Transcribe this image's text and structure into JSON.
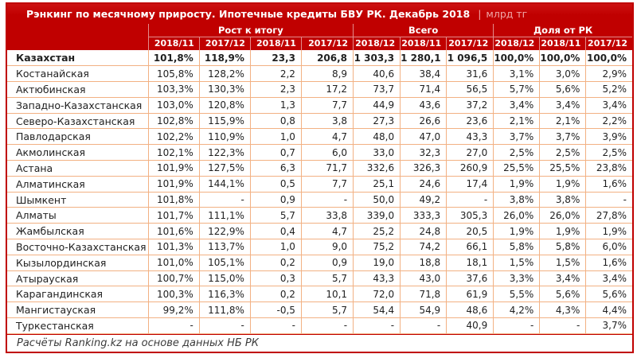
{
  "chart_data": {
    "type": "table",
    "title": "Рэнкинг по месячному приросту. Ипотечные кредиты БВУ РК. Декабрь 2018",
    "unit_divider": "|",
    "unit": "млрд тг",
    "column_groups": [
      {
        "label": "Рост к итогу",
        "cols": [
          "2018/11",
          "2017/12",
          "2018/11",
          "2017/12"
        ]
      },
      {
        "label": "Всего",
        "cols": [
          "2018/12",
          "2018/11",
          "2017/12"
        ]
      },
      {
        "label": "Доля от РК",
        "cols": [
          "2018/12",
          "2018/11",
          "2017/12"
        ]
      }
    ],
    "rows": [
      {
        "name": "Казахстан",
        "bold": true,
        "values": [
          "101,8%",
          "118,9%",
          "23,3",
          "206,8",
          "1 303,3",
          "1 280,1",
          "1 096,5",
          "100,0%",
          "100,0%",
          "100,0%"
        ]
      },
      {
        "name": "Костанайская",
        "values": [
          "105,8%",
          "128,2%",
          "2,2",
          "8,9",
          "40,6",
          "38,4",
          "31,6",
          "3,1%",
          "3,0%",
          "2,9%"
        ]
      },
      {
        "name": "Актюбинская",
        "values": [
          "103,3%",
          "130,3%",
          "2,3",
          "17,2",
          "73,7",
          "71,4",
          "56,5",
          "5,7%",
          "5,6%",
          "5,2%"
        ]
      },
      {
        "name": "Западно-Казахстанская",
        "values": [
          "103,0%",
          "120,8%",
          "1,3",
          "7,7",
          "44,9",
          "43,6",
          "37,2",
          "3,4%",
          "3,4%",
          "3,4%"
        ]
      },
      {
        "name": "Северо-Казахстанская",
        "values": [
          "102,8%",
          "115,9%",
          "0,8",
          "3,8",
          "27,3",
          "26,6",
          "23,6",
          "2,1%",
          "2,1%",
          "2,2%"
        ]
      },
      {
        "name": "Павлодарская",
        "values": [
          "102,2%",
          "110,9%",
          "1,0",
          "4,7",
          "48,0",
          "47,0",
          "43,3",
          "3,7%",
          "3,7%",
          "3,9%"
        ]
      },
      {
        "name": "Акмолинская",
        "values": [
          "102,1%",
          "122,3%",
          "0,7",
          "6,0",
          "33,0",
          "32,3",
          "27,0",
          "2,5%",
          "2,5%",
          "2,5%"
        ]
      },
      {
        "name": "Астана",
        "values": [
          "101,9%",
          "127,5%",
          "6,3",
          "71,7",
          "332,6",
          "326,3",
          "260,9",
          "25,5%",
          "25,5%",
          "23,8%"
        ]
      },
      {
        "name": "Алматинская",
        "values": [
          "101,9%",
          "144,1%",
          "0,5",
          "7,7",
          "25,1",
          "24,6",
          "17,4",
          "1,9%",
          "1,9%",
          "1,6%"
        ]
      },
      {
        "name": "Шымкент",
        "values": [
          "101,8%",
          "-",
          "0,9",
          "-",
          "50,0",
          "49,2",
          "-",
          "3,8%",
          "3,8%",
          "-"
        ]
      },
      {
        "name": "Алматы",
        "values": [
          "101,7%",
          "111,1%",
          "5,7",
          "33,8",
          "339,0",
          "333,3",
          "305,3",
          "26,0%",
          "26,0%",
          "27,8%"
        ]
      },
      {
        "name": "Жамбылская",
        "values": [
          "101,6%",
          "122,9%",
          "0,4",
          "4,7",
          "25,2",
          "24,8",
          "20,5",
          "1,9%",
          "1,9%",
          "1,9%"
        ]
      },
      {
        "name": "Восточно-Казахстанская",
        "values": [
          "101,3%",
          "113,7%",
          "1,0",
          "9,0",
          "75,2",
          "74,2",
          "66,1",
          "5,8%",
          "5,8%",
          "6,0%"
        ]
      },
      {
        "name": "Кызылординская",
        "values": [
          "101,0%",
          "105,1%",
          "0,2",
          "0,9",
          "19,0",
          "18,8",
          "18,1",
          "1,5%",
          "1,5%",
          "1,6%"
        ]
      },
      {
        "name": "Атырауская",
        "values": [
          "100,7%",
          "115,0%",
          "0,3",
          "5,7",
          "43,3",
          "43,0",
          "37,6",
          "3,3%",
          "3,4%",
          "3,4%"
        ]
      },
      {
        "name": "Карагандинская",
        "values": [
          "100,3%",
          "116,3%",
          "0,2",
          "10,1",
          "72,0",
          "71,8",
          "61,9",
          "5,5%",
          "5,6%",
          "5,6%"
        ]
      },
      {
        "name": "Мангистауская",
        "values": [
          "99,2%",
          "111,8%",
          "-0,5",
          "5,7",
          "54,4",
          "54,9",
          "48,6",
          "4,2%",
          "4,3%",
          "4,4%"
        ]
      },
      {
        "name": "Туркестанская",
        "values": [
          "-",
          "-",
          "-",
          "-",
          "-",
          "-",
          "40,9",
          "-",
          "-",
          "3,7%"
        ]
      }
    ],
    "source_note": "Расчёты Ranking.kz на основе данных НБ РК"
  },
  "colors": {
    "header_bg": "#c00000",
    "grid_line": "#f2b183",
    "text": "#1f1f1f",
    "title_text": "#ffffff",
    "unit_text": "#f0a8a8",
    "source_text": "#3c3c3c",
    "background": "#ffffff"
  }
}
